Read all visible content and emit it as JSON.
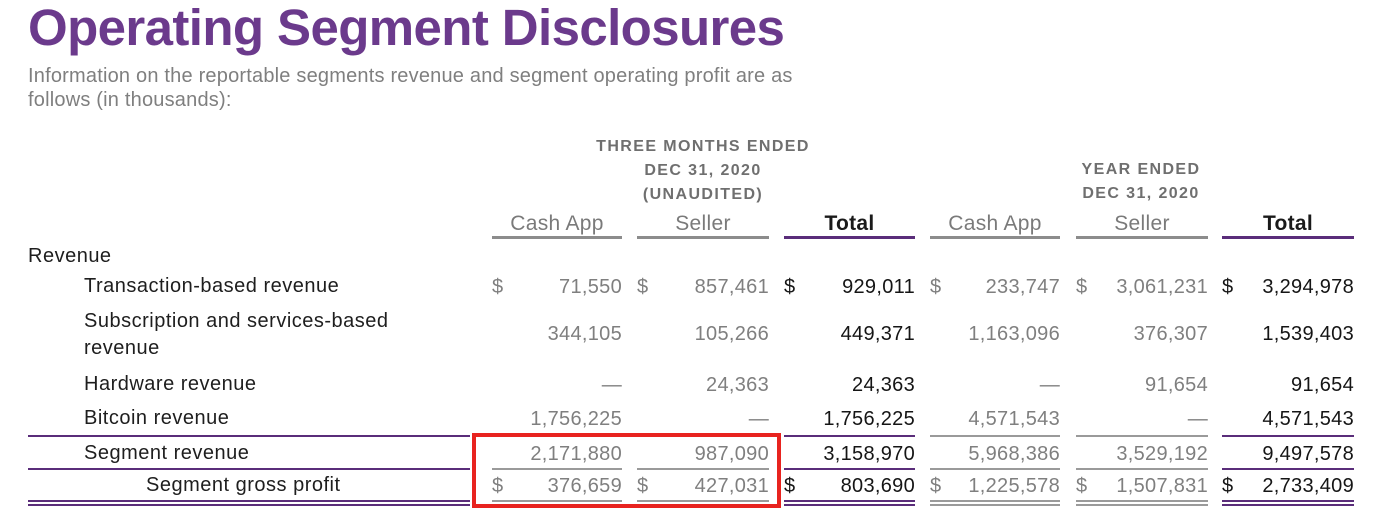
{
  "title": "Operating Segment Disclosures",
  "subtitle": "Information on the reportable segments revenue and segment operating profit are as follows (in thousands):",
  "period_headers": {
    "three_months": [
      "THREE MONTHS ENDED",
      "DEC 31, 2020",
      "(UNAUDITED)"
    ],
    "year": [
      "YEAR ENDED",
      "DEC 31, 2020"
    ]
  },
  "columns": [
    "Cash App",
    "Seller",
    "Total",
    "Cash App",
    "Seller",
    "Total"
  ],
  "section_label": "Revenue",
  "rows": [
    {
      "label": "Transaction-based revenue",
      "values": [
        "71,550",
        "857,461",
        "929,011",
        "233,747",
        "3,061,231",
        "3,294,978"
      ],
      "dollars": [
        true,
        true,
        true,
        true,
        true,
        true
      ]
    },
    {
      "label": "Subscription and services-based revenue",
      "label_lines": [
        "Subscription and services-based",
        "revenue"
      ],
      "values": [
        "344,105",
        "105,266",
        "449,371",
        "1,163,096",
        "376,307",
        "1,539,403"
      ],
      "dollars": [
        false,
        false,
        false,
        false,
        false,
        false
      ]
    },
    {
      "label": "Hardware revenue",
      "values": [
        "—",
        "24,363",
        "24,363",
        "—",
        "91,654",
        "91,654"
      ],
      "dollars": [
        false,
        false,
        false,
        false,
        false,
        false
      ]
    },
    {
      "label": "Bitcoin revenue",
      "values": [
        "1,756,225",
        "—",
        "1,756,225",
        "4,571,543",
        "—",
        "4,571,543"
      ],
      "dollars": [
        false,
        false,
        false,
        false,
        false,
        false
      ]
    },
    {
      "label": "Segment revenue",
      "values": [
        "2,171,880",
        "987,090",
        "3,158,970",
        "5,968,386",
        "3,529,192",
        "9,497,578"
      ],
      "dollars": [
        false,
        false,
        false,
        false,
        false,
        false
      ]
    },
    {
      "label": "Segment gross profit",
      "values": [
        "376,659",
        "427,031",
        "803,690",
        "1,225,578",
        "1,507,831",
        "2,733,409"
      ],
      "dollars": [
        true,
        true,
        true,
        true,
        true,
        true
      ]
    }
  ],
  "currency_symbol": "$",
  "colors": {
    "title": "#6b3a8c",
    "rule_purple": "#5a2d7a",
    "highlight": "#e8231f",
    "muted_text": "#7f7f7f"
  }
}
